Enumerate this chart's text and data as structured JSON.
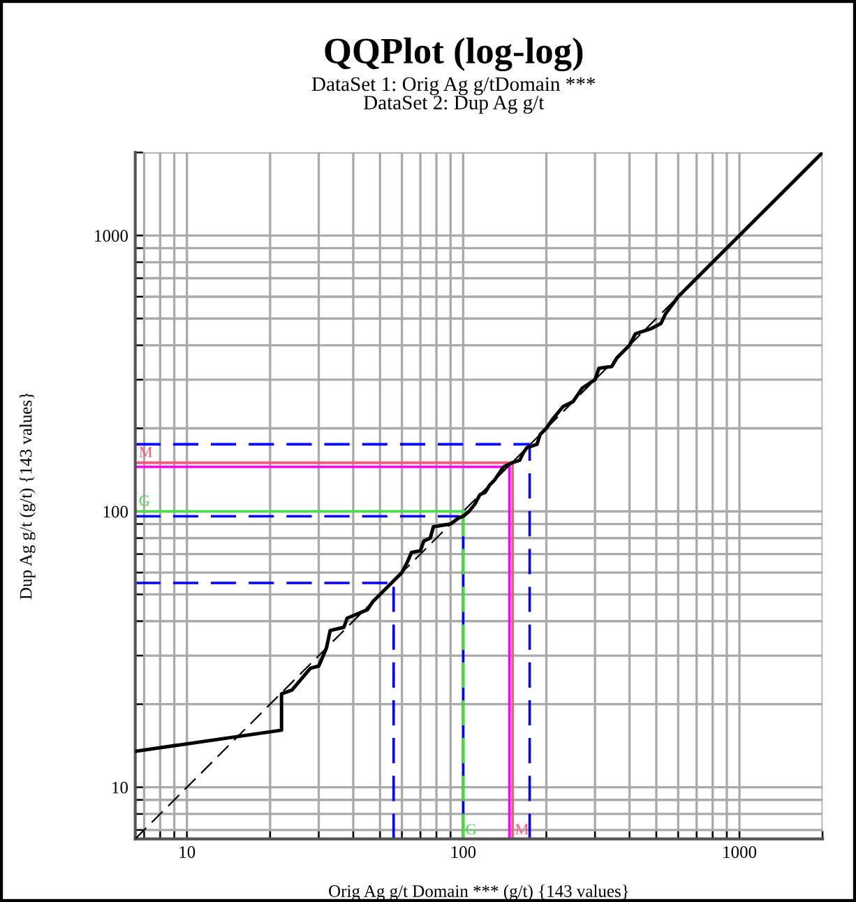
{
  "chart_data": {
    "type": "line",
    "title": "QQPlot (log-log)",
    "subtitle": "DataSet 1: Orig Ag g/tDomain ***\nDataSet 2: Dup Ag g/t",
    "xlabel": "Orig Ag g/t Domain *** (g/t) {143 values}",
    "ylabel": "Dup Ag g/t (g/t) {143 values}",
    "log": "xy",
    "grid": true,
    "legend": false,
    "marker": "none",
    "xlim": [
      6.5,
      2000
    ],
    "ylim": [
      6.5,
      2000
    ],
    "xticks": [
      {
        "value": 7,
        "label": null
      },
      {
        "value": 8,
        "label": null
      },
      {
        "value": 9,
        "label": null
      },
      10,
      {
        "value": 20,
        "label": null
      },
      {
        "value": 30,
        "label": null
      },
      {
        "value": 40,
        "label": null
      },
      {
        "value": 50,
        "label": null
      },
      {
        "value": 60,
        "label": null
      },
      {
        "value": 70,
        "label": null
      },
      {
        "value": 80,
        "label": null
      },
      {
        "value": 90,
        "label": null
      },
      100,
      {
        "value": 200,
        "label": null
      },
      {
        "value": 300,
        "label": null
      },
      {
        "value": 400,
        "label": null
      },
      {
        "value": 500,
        "label": null
      },
      {
        "value": 600,
        "label": null
      },
      {
        "value": 700,
        "label": null
      },
      {
        "value": 800,
        "label": null
      },
      {
        "value": 900,
        "label": null
      },
      1000,
      {
        "value": 2000,
        "label": null
      }
    ],
    "yticks": [
      {
        "value": 7,
        "label": null
      },
      {
        "value": 8,
        "label": null
      },
      {
        "value": 9,
        "label": null
      },
      10,
      {
        "value": 20,
        "label": null
      },
      {
        "value": 30,
        "label": null
      },
      {
        "value": 40,
        "label": null
      },
      {
        "value": 50,
        "label": null
      },
      {
        "value": 60,
        "label": null
      },
      {
        "value": 70,
        "label": null
      },
      {
        "value": 80,
        "label": null
      },
      {
        "value": 90,
        "label": null
      },
      100,
      {
        "value": 200,
        "label": null
      },
      {
        "value": 300,
        "label": null
      },
      {
        "value": 400,
        "label": null
      },
      {
        "value": 500,
        "label": null
      },
      {
        "value": 600,
        "label": null
      },
      {
        "value": 700,
        "label": null
      },
      {
        "value": 800,
        "label": null
      },
      {
        "value": 900,
        "label": null
      },
      1000,
      {
        "value": 2000,
        "label": null
      }
    ],
    "series": [
      {
        "color": "#000000",
        "line_style": "dashed",
        "x": [
          6.5,
          2000
        ],
        "values": [
          6.5,
          2000
        ]
      },
      {
        "color": "#000000",
        "line_style": "solid",
        "x": [
          6.5,
          22,
          22,
          24,
          28,
          30,
          32,
          33,
          37,
          38,
          45,
          47,
          50,
          55,
          60,
          63,
          65,
          70,
          72,
          76,
          78,
          90,
          97,
          100,
          105,
          110,
          115,
          120,
          125,
          130,
          140,
          150,
          160,
          165,
          170,
          185,
          190,
          200,
          210,
          230,
          250,
          270,
          300,
          310,
          345,
          360,
          400,
          420,
          480,
          520,
          540,
          600,
          2000
        ],
        "values": [
          13.5,
          16.1,
          21.8,
          22.5,
          27,
          27.5,
          32,
          37,
          38,
          41,
          44,
          47,
          50,
          55,
          60,
          66,
          71,
          72,
          78,
          80,
          88,
          90,
          95,
          96,
          100,
          106,
          115,
          117,
          125,
          130,
          145,
          150,
          153,
          163,
          170,
          175,
          190,
          200,
          215,
          240,
          250,
          280,
          300,
          330,
          335,
          360,
          400,
          440,
          460,
          480,
          520,
          600,
          2000
        ]
      }
    ],
    "ref_lines": [
      {
        "axis": "x",
        "value": 56,
        "color": "#0000ff",
        "line_style": "dashed"
      },
      {
        "axis": "x",
        "value": 100,
        "color": "#0000ff",
        "line_style": "solid"
      },
      {
        "axis": "x",
        "value": 174,
        "color": "#0000ff",
        "line_style": "dashed"
      },
      {
        "axis": "y",
        "value": 55,
        "color": "#0000ff",
        "line_style": "dashed"
      },
      {
        "axis": "y",
        "value": 96,
        "color": "#0000ff",
        "line_style": "dashed"
      },
      {
        "axis": "y",
        "value": 175,
        "color": "#0000ff",
        "line_style": "dashed"
      },
      {
        "axis": "x",
        "value": 100,
        "color": "#44dd44",
        "line_style": "dashed",
        "label": "G"
      },
      {
        "axis": "y",
        "value": 100,
        "color": "#44dd44",
        "line_style": "solid",
        "label": "G"
      },
      {
        "axis": "x",
        "value": 147,
        "color": "#ff00ff",
        "line_style": "solid"
      },
      {
        "axis": "x",
        "value": 151,
        "color": "#ff5577",
        "line_style": "solid",
        "label": "M"
      },
      {
        "axis": "y",
        "value": 145,
        "color": "#ff00ff",
        "line_style": "solid"
      },
      {
        "axis": "y",
        "value": 150,
        "color": "#ff5577",
        "line_style": "solid",
        "label": "M"
      }
    ]
  }
}
